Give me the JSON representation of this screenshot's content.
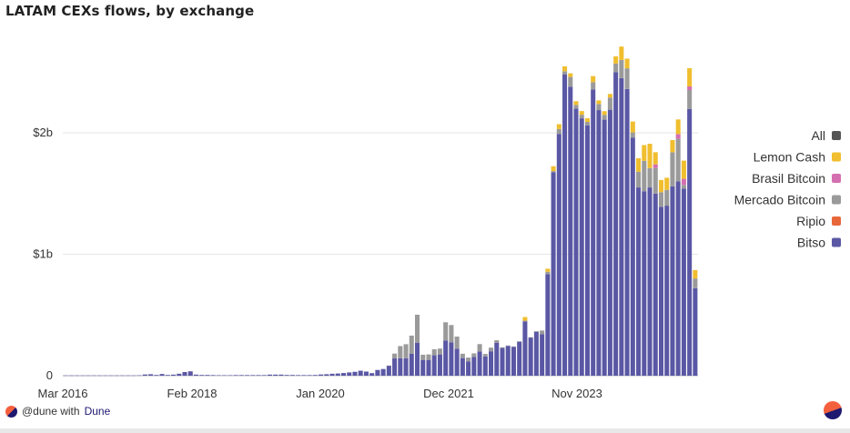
{
  "header": {
    "title": "LATAM CEXs flows, by exchange"
  },
  "footer": {
    "handle": "@dune with ",
    "brand": "Dune"
  },
  "colors": {
    "Bitso": "#5a57a4",
    "Ripio": "#e8673a",
    "Mercado Bitcoin": "#9a9a9a",
    "Brasil Bitcoin": "#d46fb0",
    "Lemon Cash": "#f0be2e",
    "All": "#555555"
  },
  "chart_data": {
    "type": "bar",
    "stacked": true,
    "title": "LATAM CEXs flows, by exchange",
    "xlabel": "",
    "ylabel": "",
    "x_ticks": [
      "Mar 2016",
      "Feb 2018",
      "Jan 2020",
      "Dec 2021",
      "Nov 2023"
    ],
    "y_ticks": [
      "0",
      "$1b",
      "$2b"
    ],
    "ylim": [
      0,
      2850
    ],
    "y_unit": "USD millions",
    "grid": "horizontal",
    "legend_position": "right",
    "legend": [
      "All",
      "Lemon Cash",
      "Brasil Bitcoin",
      "Mercado Bitcoin",
      "Ripio",
      "Bitso"
    ],
    "series": [
      {
        "name": "Bitso",
        "values": [
          2,
          2,
          2,
          2,
          2,
          2,
          2,
          2,
          2,
          2,
          2,
          2,
          2,
          3,
          10,
          12,
          6,
          14,
          6,
          9,
          16,
          30,
          36,
          9,
          6,
          6,
          5,
          4,
          4,
          4,
          5,
          5,
          5,
          5,
          5,
          5,
          9,
          9,
          9,
          6,
          6,
          5,
          5,
          5,
          6,
          10,
          12,
          16,
          18,
          22,
          27,
          32,
          41,
          34,
          21,
          47,
          55,
          82,
          142,
          144,
          144,
          180,
          272,
          130,
          130,
          168,
          175,
          290,
          275,
          222,
          145,
          118,
          154,
          200,
          159,
          201,
          272,
          228,
          245,
          238,
          280,
          446,
          314,
          362,
          342,
          836,
          1675,
          1991,
          2482,
          2380,
          2200,
          2119,
          2062,
          2357,
          2187,
          2108,
          2190,
          2500,
          2450,
          2361,
          1961,
          1550,
          1519,
          1550,
          1500,
          1391,
          1400,
          1560,
          1600,
          1541,
          2197,
          720
        ]
      },
      {
        "name": "Ripio",
        "values": [
          0,
          0,
          0,
          0,
          0,
          0,
          0,
          0,
          0,
          0,
          0,
          0,
          0,
          0,
          0,
          0,
          0,
          0,
          0,
          0,
          0,
          0,
          0,
          0,
          0,
          0,
          0,
          0,
          0,
          0,
          0,
          0,
          0,
          0,
          0,
          0,
          0,
          0,
          0,
          0,
          0,
          0,
          0,
          0,
          0,
          0,
          0,
          0,
          0,
          0,
          0,
          0,
          0,
          0,
          0,
          0,
          0,
          0,
          0,
          0,
          0,
          0,
          0,
          0,
          0,
          0,
          0,
          0,
          0,
          0,
          0,
          0,
          0,
          0,
          0,
          0,
          0,
          0,
          0,
          0,
          0,
          0,
          0,
          0,
          0,
          0,
          0,
          0,
          0,
          0,
          0,
          0,
          0,
          0,
          0,
          0,
          0,
          0,
          0,
          0,
          0,
          0,
          0,
          0,
          0,
          0,
          0,
          0,
          0,
          0,
          0,
          0
        ]
      },
      {
        "name": "Mercado Bitcoin",
        "values": [
          0,
          0,
          0,
          0,
          0,
          0,
          0,
          0,
          0,
          0,
          0,
          0,
          0,
          0,
          0,
          0,
          0,
          0,
          0,
          0,
          0,
          0,
          0,
          0,
          0,
          0,
          0,
          0,
          0,
          0,
          0,
          0,
          0,
          0,
          0,
          0,
          0,
          0,
          0,
          0,
          0,
          0,
          0,
          0,
          0,
          0,
          0,
          0,
          0,
          0,
          0,
          0,
          0,
          0,
          0,
          0,
          0,
          2,
          40,
          100,
          115,
          150,
          230,
          43,
          45,
          50,
          48,
          150,
          142,
          100,
          36,
          31,
          30,
          60,
          20,
          30,
          20,
          6,
          4,
          3,
          3,
          7,
          3,
          4,
          30,
          20,
          10,
          40,
          25,
          80,
          30,
          30,
          28,
          60,
          50,
          40,
          100,
          70,
          150,
          170,
          42,
          130,
          250,
          160,
          210,
          120,
          130,
          280,
          350,
          30,
          155,
          80
        ]
      },
      {
        "name": "Brasil Bitcoin",
        "values": [
          0,
          0,
          0,
          0,
          0,
          0,
          0,
          0,
          0,
          0,
          0,
          0,
          0,
          0,
          0,
          0,
          0,
          0,
          0,
          0,
          0,
          0,
          0,
          0,
          0,
          0,
          0,
          0,
          0,
          0,
          0,
          0,
          0,
          0,
          0,
          0,
          0,
          0,
          0,
          0,
          0,
          0,
          0,
          0,
          0,
          0,
          0,
          0,
          0,
          0,
          0,
          0,
          0,
          0,
          0,
          0,
          0,
          0,
          0,
          0,
          0,
          0,
          0,
          0,
          0,
          0,
          0,
          0,
          0,
          0,
          0,
          0,
          0,
          0,
          0,
          0,
          0,
          0,
          0,
          0,
          0,
          0,
          0,
          0,
          0,
          0,
          0,
          0,
          0,
          0,
          0,
          0,
          0,
          0,
          0,
          0,
          0,
          0,
          0,
          0,
          0,
          0,
          0,
          0,
          30,
          0,
          0,
          0,
          40,
          50,
          30,
          0
        ]
      },
      {
        "name": "Lemon Cash",
        "values": [
          0,
          0,
          0,
          0,
          0,
          0,
          0,
          0,
          0,
          0,
          0,
          0,
          0,
          0,
          0,
          0,
          0,
          0,
          0,
          0,
          0,
          0,
          0,
          0,
          0,
          0,
          0,
          0,
          0,
          0,
          0,
          0,
          0,
          0,
          0,
          0,
          0,
          0,
          0,
          0,
          0,
          0,
          0,
          0,
          0,
          0,
          0,
          0,
          0,
          0,
          0,
          0,
          0,
          0,
          0,
          0,
          0,
          0,
          0,
          0,
          0,
          0,
          0,
          0,
          0,
          0,
          0,
          0,
          0,
          0,
          0,
          0,
          0,
          0,
          0,
          0,
          0,
          0,
          0,
          0,
          0,
          30,
          0,
          0,
          0,
          25,
          40,
          40,
          40,
          30,
          30,
          30,
          30,
          50,
          30,
          30,
          30,
          60,
          110,
          80,
          90,
          110,
          130,
          200,
          100,
          100,
          100,
          100,
          120,
          150,
          150,
          70
        ]
      }
    ]
  }
}
